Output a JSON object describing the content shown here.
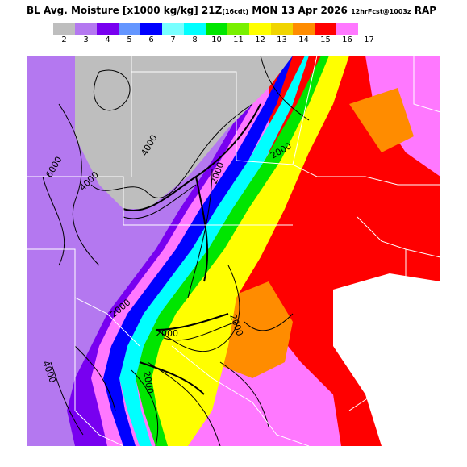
{
  "header": {
    "title_main": "BL Avg. Moisture [x1000 kg/kg] 21Z",
    "title_cdt": "(16cdt)",
    "title_date": "MON 13 Apr 2026",
    "title_run": "12hrFcst@1003z",
    "title_model": "RAP"
  },
  "legend": {
    "labels": [
      "2",
      "3",
      "4",
      "5",
      "6",
      "7",
      "8",
      "10",
      "11",
      "12",
      "13",
      "14",
      "15",
      "16",
      "17"
    ],
    "colors": [
      "#bebebe",
      "#b478f0",
      "#7800f0",
      "#6496ff",
      "#0000ff",
      "#78ffff",
      "#00ffff",
      "#00e600",
      "#78f000",
      "#ffff00",
      "#f0d400",
      "#ff8c00",
      "#ff0000",
      "#ff78ff"
    ]
  },
  "map": {
    "contour_labels": [
      "6000",
      "4000",
      "4000",
      "2000",
      "2000",
      "2000",
      "2000",
      "2000",
      "4000",
      "2000"
    ]
  }
}
